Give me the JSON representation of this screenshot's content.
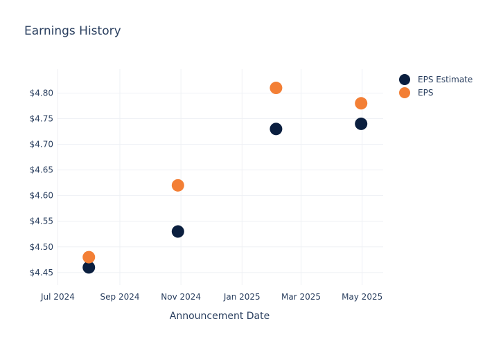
{
  "chart_data": {
    "type": "scatter",
    "title": "Earnings History",
    "xlabel": "Announcement Date",
    "ylabel": "",
    "x_ticks": [
      "Jul 2024",
      "Sep 2024",
      "Nov 2024",
      "Jan 2025",
      "Mar 2025",
      "May 2025"
    ],
    "x_tick_dates": [
      "2024-07-01",
      "2024-09-01",
      "2024-11-01",
      "2025-01-01",
      "2025-03-01",
      "2025-05-01"
    ],
    "xlim": [
      "2024-06-30",
      "2025-05-22"
    ],
    "y_ticks": [
      "$4.45",
      "$4.50",
      "$4.55",
      "$4.60",
      "$4.65",
      "$4.70",
      "$4.75",
      "$4.80"
    ],
    "y_tick_values": [
      4.45,
      4.5,
      4.55,
      4.6,
      4.65,
      4.7,
      4.75,
      4.8
    ],
    "ylim": [
      4.4255,
      4.8465
    ],
    "grid": true,
    "legend_position": "top-right",
    "series": [
      {
        "name": "EPS Estimate",
        "color": "#0b1f3f",
        "x": [
          "2024-08-01",
          "2024-10-29",
          "2025-02-04",
          "2025-04-30"
        ],
        "y": [
          4.46,
          4.53,
          4.73,
          4.74
        ]
      },
      {
        "name": "EPS",
        "color": "#f37f35",
        "x": [
          "2024-08-01",
          "2024-10-29",
          "2025-02-04",
          "2025-04-30"
        ],
        "y": [
          4.48,
          4.62,
          4.81,
          4.78
        ]
      }
    ]
  }
}
